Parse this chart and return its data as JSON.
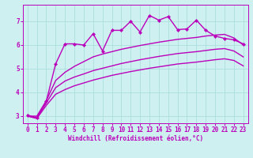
{
  "bg_color": "#cff0f0",
  "grid_color": "#aadddd",
  "line_color": "#bb00bb",
  "marker_color": "#bb00bb",
  "xlabel": "Windchill (Refroidissement éolien,°C)",
  "xlabel_color": "#bb00bb",
  "xlim": [
    -0.5,
    23.5
  ],
  "ylim": [
    2.7,
    7.7
  ],
  "yticks": [
    3,
    4,
    5,
    6,
    7
  ],
  "xticks": [
    0,
    1,
    2,
    3,
    4,
    5,
    6,
    7,
    8,
    9,
    10,
    11,
    12,
    13,
    14,
    15,
    16,
    17,
    18,
    19,
    20,
    21,
    22,
    23
  ],
  "series": [
    {
      "x": [
        0,
        1,
        2,
        3,
        4,
        5,
        6,
        7,
        8,
        9,
        10,
        11,
        12,
        13,
        14,
        15,
        16,
        17,
        18,
        19,
        20,
        21,
        22,
        23
      ],
      "y": [
        3.05,
        2.92,
        3.62,
        5.2,
        6.05,
        6.05,
        6.0,
        6.48,
        5.75,
        6.62,
        6.62,
        7.0,
        6.55,
        7.25,
        7.05,
        7.2,
        6.65,
        6.68,
        7.05,
        6.62,
        6.38,
        6.28,
        6.22,
        6.05
      ],
      "marker": true,
      "lw": 1.0
    },
    {
      "x": [
        0,
        1,
        2,
        3,
        4,
        5,
        6,
        7,
        8,
        9,
        10,
        11,
        12,
        13,
        14,
        15,
        16,
        17,
        18,
        19,
        20,
        21,
        22,
        23
      ],
      "y": [
        3.0,
        3.0,
        3.65,
        4.5,
        4.85,
        5.1,
        5.3,
        5.5,
        5.62,
        5.72,
        5.82,
        5.9,
        5.98,
        6.05,
        6.12,
        6.18,
        6.24,
        6.28,
        6.32,
        6.38,
        6.42,
        6.45,
        6.3,
        6.0
      ],
      "marker": false,
      "lw": 1.0
    },
    {
      "x": [
        0,
        1,
        2,
        3,
        4,
        5,
        6,
        7,
        8,
        9,
        10,
        11,
        12,
        13,
        14,
        15,
        16,
        17,
        18,
        19,
        20,
        21,
        22,
        23
      ],
      "y": [
        3.0,
        2.95,
        3.55,
        4.2,
        4.48,
        4.65,
        4.78,
        4.92,
        5.02,
        5.12,
        5.22,
        5.3,
        5.38,
        5.45,
        5.52,
        5.58,
        5.64,
        5.68,
        5.72,
        5.77,
        5.82,
        5.85,
        5.75,
        5.5
      ],
      "marker": false,
      "lw": 1.0
    },
    {
      "x": [
        0,
        1,
        2,
        3,
        4,
        5,
        6,
        7,
        8,
        9,
        10,
        11,
        12,
        13,
        14,
        15,
        16,
        17,
        18,
        19,
        20,
        21,
        22,
        23
      ],
      "y": [
        3.0,
        2.9,
        3.45,
        3.92,
        4.12,
        4.28,
        4.4,
        4.52,
        4.62,
        4.72,
        4.8,
        4.88,
        4.95,
        5.02,
        5.08,
        5.14,
        5.2,
        5.24,
        5.28,
        5.33,
        5.38,
        5.42,
        5.35,
        5.12
      ],
      "marker": false,
      "lw": 1.0
    }
  ]
}
